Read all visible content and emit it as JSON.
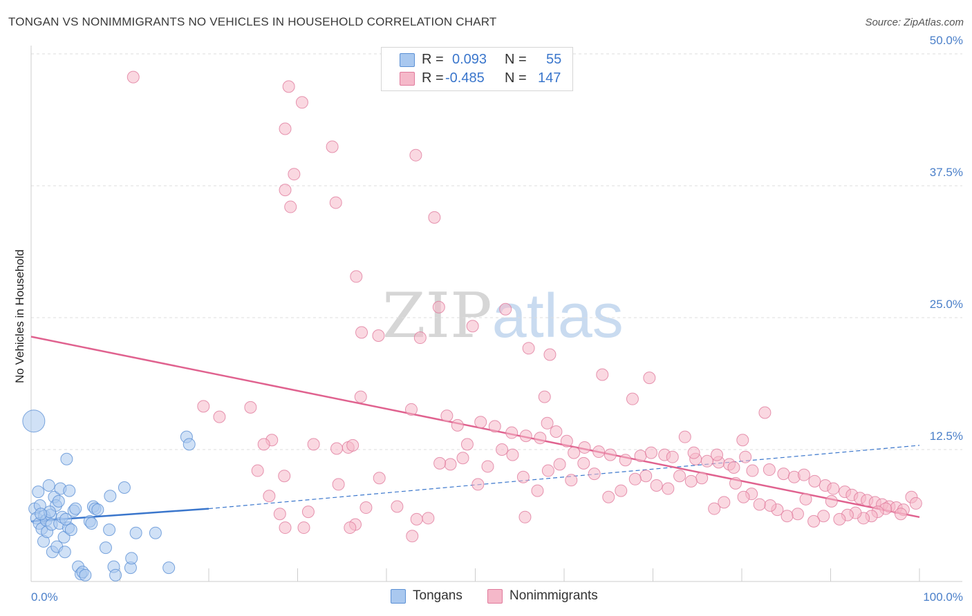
{
  "title": "TONGAN VS NONIMMIGRANTS NO VEHICLES IN HOUSEHOLD CORRELATION CHART",
  "source": "Source: ZipAtlas.com",
  "watermark": {
    "zip": "ZIP",
    "atlas": "atlas"
  },
  "legend": {
    "rows": [
      {
        "r_label": "R =",
        "r_value": "0.093",
        "n_label": "N =",
        "n_value": "55",
        "color": "#a9c8ef"
      },
      {
        "r_label": "R =",
        "r_value": "-0.485",
        "n_label": "N =",
        "n_value": "147",
        "color": "#f5b8c9"
      }
    ]
  },
  "bottom_legend": {
    "tongans": "Tongans",
    "nonimmigrants": "Nonimmigrants"
  },
  "colors": {
    "tongans_fill": "#a9c8ef",
    "tongans_stroke": "#5a8fd4",
    "tongans_line": "#3a76cc",
    "nonimm_fill": "#f5b8c9",
    "nonimm_stroke": "#e07a9c",
    "nonimm_line": "#e0628f",
    "grid": "#dddddd",
    "axis_text": "#4a7fc9"
  },
  "chart_data": {
    "type": "scatter",
    "title": "TONGAN VS NONIMMIGRANTS NO VEHICLES IN HOUSEHOLD CORRELATION CHART",
    "xlabel": "",
    "ylabel": "No Vehicles in Household",
    "xlim": [
      0,
      100
    ],
    "ylim": [
      0,
      50
    ],
    "x_tick_labels": [
      "0.0%",
      "100.0%"
    ],
    "y_ticks": [
      12.5,
      25.0,
      37.5,
      50.0
    ],
    "y_tick_labels": [
      "12.5%",
      "25.0%",
      "37.5%",
      "50.0%"
    ],
    "grid": true,
    "legend_position": "top-center",
    "series": [
      {
        "name": "Tongans",
        "R": 0.093,
        "N": 55,
        "trend_solid": [
          [
            0,
            5.7
          ],
          [
            20,
            6.9
          ]
        ],
        "trend_dashed": [
          [
            20,
            6.9
          ],
          [
            100,
            12.9
          ]
        ],
        "points": [
          [
            0.3,
            15.2,
            3
          ],
          [
            0.4,
            6.9,
            1
          ],
          [
            0.6,
            6.0,
            1
          ],
          [
            0.8,
            8.5,
            1
          ],
          [
            0.9,
            5.5,
            1
          ],
          [
            1.0,
            7.2,
            1
          ],
          [
            1.2,
            5.0,
            1
          ],
          [
            1.4,
            3.8,
            1
          ],
          [
            1.5,
            6.2,
            1
          ],
          [
            1.7,
            5.8,
            1
          ],
          [
            1.8,
            4.7,
            1
          ],
          [
            2.0,
            9.1,
            1
          ],
          [
            2.2,
            6.3,
            1
          ],
          [
            2.3,
            5.4,
            1
          ],
          [
            2.4,
            2.8,
            1
          ],
          [
            2.6,
            8.0,
            1
          ],
          [
            2.8,
            7.2,
            1
          ],
          [
            2.9,
            3.3,
            1
          ],
          [
            3.1,
            7.6,
            1
          ],
          [
            3.2,
            5.5,
            1
          ],
          [
            3.3,
            8.8,
            1
          ],
          [
            3.5,
            6.1,
            1
          ],
          [
            3.7,
            4.2,
            1
          ],
          [
            3.8,
            2.8,
            1
          ],
          [
            4.0,
            11.6,
            1
          ],
          [
            4.2,
            5.1,
            1
          ],
          [
            4.3,
            8.6,
            1
          ],
          [
            4.5,
            4.9,
            1
          ],
          [
            4.8,
            6.7,
            1
          ],
          [
            5.0,
            6.9,
            1
          ],
          [
            5.3,
            1.4,
            1
          ],
          [
            5.6,
            0.7,
            1
          ],
          [
            5.8,
            0.9,
            1
          ],
          [
            6.1,
            0.6,
            1
          ],
          [
            6.6,
            5.7,
            1
          ],
          [
            6.8,
            5.5,
            1
          ],
          [
            7.0,
            7.1,
            1
          ],
          [
            7.2,
            6.9,
            1
          ],
          [
            7.5,
            6.8,
            1
          ],
          [
            8.4,
            3.2,
            1
          ],
          [
            8.8,
            4.9,
            1
          ],
          [
            8.9,
            8.1,
            1
          ],
          [
            9.3,
            1.4,
            1
          ],
          [
            9.5,
            0.6,
            1
          ],
          [
            10.5,
            8.9,
            1
          ],
          [
            11.2,
            1.3,
            1
          ],
          [
            11.3,
            2.2,
            1
          ],
          [
            11.8,
            4.6,
            1
          ],
          [
            14.0,
            4.6,
            1
          ],
          [
            15.5,
            1.3,
            1
          ],
          [
            17.5,
            13.7,
            1
          ],
          [
            17.8,
            13.0,
            1
          ],
          [
            2.1,
            6.6,
            1
          ],
          [
            1.1,
            6.4,
            1
          ],
          [
            3.9,
            5.9,
            1
          ]
        ]
      },
      {
        "name": "Nonimmigrants",
        "R": -0.485,
        "N": 147,
        "trend_solid": [
          [
            0,
            23.2
          ],
          [
            100,
            6.1
          ]
        ],
        "points": [
          [
            11.5,
            47.8,
            1
          ],
          [
            30.5,
            45.4,
            1
          ],
          [
            28.6,
            42.9,
            1
          ],
          [
            33.9,
            41.2,
            1
          ],
          [
            29.0,
            46.9,
            1
          ],
          [
            29.2,
            35.5,
            1
          ],
          [
            28.6,
            37.1,
            1
          ],
          [
            29.6,
            38.6,
            1
          ],
          [
            34.3,
            35.9,
            1
          ],
          [
            43.3,
            40.4,
            1
          ],
          [
            45.4,
            34.5,
            1
          ],
          [
            36.6,
            28.9,
            1
          ],
          [
            37.2,
            23.6,
            1
          ],
          [
            45.9,
            26.0,
            1
          ],
          [
            39.1,
            23.3,
            1
          ],
          [
            53.4,
            25.8,
            1
          ],
          [
            49.7,
            24.2,
            1
          ],
          [
            43.8,
            23.1,
            1
          ],
          [
            56.0,
            22.1,
            1
          ],
          [
            58.4,
            21.5,
            1
          ],
          [
            64.3,
            19.6,
            1
          ],
          [
            69.6,
            19.3,
            1
          ],
          [
            57.8,
            17.5,
            1
          ],
          [
            19.4,
            16.6,
            1
          ],
          [
            21.2,
            15.6,
            1
          ],
          [
            24.7,
            16.5,
            1
          ],
          [
            27.1,
            13.4,
            1
          ],
          [
            26.2,
            13.0,
            1
          ],
          [
            31.8,
            13.0,
            1
          ],
          [
            35.7,
            12.7,
            1
          ],
          [
            37.1,
            17.5,
            1
          ],
          [
            42.8,
            16.3,
            1
          ],
          [
            46.8,
            15.7,
            1
          ],
          [
            48.0,
            14.8,
            1
          ],
          [
            50.6,
            15.1,
            1
          ],
          [
            49.1,
            13.0,
            1
          ],
          [
            52.2,
            14.7,
            1
          ],
          [
            54.1,
            14.1,
            1
          ],
          [
            55.7,
            13.8,
            1
          ],
          [
            57.3,
            13.6,
            1
          ],
          [
            58.1,
            15.0,
            1
          ],
          [
            59.1,
            14.2,
            1
          ],
          [
            60.3,
            13.3,
            1
          ],
          [
            61.1,
            12.2,
            1
          ],
          [
            62.3,
            12.7,
            1
          ],
          [
            63.9,
            12.3,
            1
          ],
          [
            65.2,
            12.0,
            1
          ],
          [
            66.9,
            11.5,
            1
          ],
          [
            68.6,
            11.9,
            1
          ],
          [
            69.8,
            12.2,
            1
          ],
          [
            71.3,
            12.0,
            1
          ],
          [
            72.2,
            11.8,
            1
          ],
          [
            73.6,
            13.7,
            1
          ],
          [
            74.8,
            11.6,
            1
          ],
          [
            76.1,
            11.4,
            1
          ],
          [
            77.4,
            11.3,
            1
          ],
          [
            78.6,
            11.1,
            1
          ],
          [
            79.1,
            10.8,
            1
          ],
          [
            80.4,
            11.8,
            1
          ],
          [
            81.2,
            10.5,
            1
          ],
          [
            82.6,
            16.0,
            1
          ],
          [
            83.1,
            10.6,
            1
          ],
          [
            84.7,
            10.2,
            1
          ],
          [
            85.9,
            9.9,
            1
          ],
          [
            87.0,
            10.1,
            1
          ],
          [
            88.2,
            9.5,
            1
          ],
          [
            89.4,
            9.1,
            1
          ],
          [
            90.3,
            8.8,
            1
          ],
          [
            91.6,
            8.5,
            1
          ],
          [
            92.4,
            8.2,
            1
          ],
          [
            93.3,
            7.9,
            1
          ],
          [
            94.1,
            7.7,
            1
          ],
          [
            95.0,
            7.5,
            1
          ],
          [
            95.8,
            7.3,
            1
          ],
          [
            96.6,
            7.1,
            1
          ],
          [
            97.4,
            7.0,
            1
          ],
          [
            98.2,
            6.8,
            1
          ],
          [
            99.1,
            8.0,
            1
          ],
          [
            99.6,
            7.4,
            1
          ],
          [
            97.9,
            6.4,
            1
          ],
          [
            96.2,
            6.9,
            1
          ],
          [
            95.3,
            6.6,
            1
          ],
          [
            94.6,
            6.2,
            1
          ],
          [
            93.7,
            6.0,
            1
          ],
          [
            92.8,
            6.5,
            1
          ],
          [
            91.9,
            6.3,
            1
          ],
          [
            91.0,
            5.9,
            1
          ],
          [
            90.1,
            7.6,
            1
          ],
          [
            89.2,
            6.2,
            1
          ],
          [
            88.1,
            5.7,
            1
          ],
          [
            87.2,
            7.8,
            1
          ],
          [
            86.3,
            6.4,
            1
          ],
          [
            85.1,
            6.2,
            1
          ],
          [
            84.0,
            6.8,
            1
          ],
          [
            83.2,
            7.2,
            1
          ],
          [
            82.0,
            7.3,
            1
          ],
          [
            81.1,
            8.3,
            1
          ],
          [
            80.2,
            8.0,
            1
          ],
          [
            79.3,
            9.3,
            1
          ],
          [
            78.0,
            7.5,
            1
          ],
          [
            76.9,
            6.9,
            1
          ],
          [
            75.5,
            9.8,
            1
          ],
          [
            74.3,
            9.5,
            1
          ],
          [
            73.0,
            10.0,
            1
          ],
          [
            71.7,
            8.8,
            1
          ],
          [
            70.4,
            9.1,
            1
          ],
          [
            69.2,
            10.0,
            1
          ],
          [
            68.0,
            9.7,
            1
          ],
          [
            66.4,
            8.6,
            1
          ],
          [
            65.0,
            8.0,
            1
          ],
          [
            63.4,
            10.2,
            1
          ],
          [
            62.2,
            11.2,
            1
          ],
          [
            60.8,
            9.6,
            1
          ],
          [
            59.5,
            11.1,
            1
          ],
          [
            58.2,
            10.5,
            1
          ],
          [
            57.0,
            8.6,
            1
          ],
          [
            55.4,
            9.9,
            1
          ],
          [
            54.2,
            12.0,
            1
          ],
          [
            53.0,
            12.5,
            1
          ],
          [
            51.4,
            10.9,
            1
          ],
          [
            50.3,
            9.2,
            1
          ],
          [
            48.6,
            11.7,
            1
          ],
          [
            47.2,
            11.1,
            1
          ],
          [
            46.0,
            11.2,
            1
          ],
          [
            44.7,
            6.0,
            1
          ],
          [
            43.4,
            5.9,
            1
          ],
          [
            42.9,
            4.3,
            1
          ],
          [
            41.2,
            7.1,
            1
          ],
          [
            39.2,
            9.8,
            1
          ],
          [
            37.7,
            7.0,
            1
          ],
          [
            36.5,
            5.4,
            1
          ],
          [
            35.9,
            5.1,
            1
          ],
          [
            34.6,
            9.2,
            1
          ],
          [
            31.2,
            6.6,
            1
          ],
          [
            28.5,
            10.0,
            1
          ],
          [
            25.5,
            10.5,
            1
          ],
          [
            26.8,
            8.1,
            1
          ],
          [
            28.0,
            6.4,
            1
          ],
          [
            28.6,
            5.1,
            1
          ],
          [
            30.7,
            5.1,
            1
          ],
          [
            34.4,
            12.6,
            1
          ],
          [
            36.2,
            12.9,
            1
          ],
          [
            55.6,
            6.1,
            1
          ],
          [
            67.7,
            17.3,
            1
          ],
          [
            74.6,
            12.2,
            1
          ],
          [
            77.2,
            12.0,
            1
          ],
          [
            80.1,
            13.4,
            1
          ]
        ]
      }
    ]
  }
}
